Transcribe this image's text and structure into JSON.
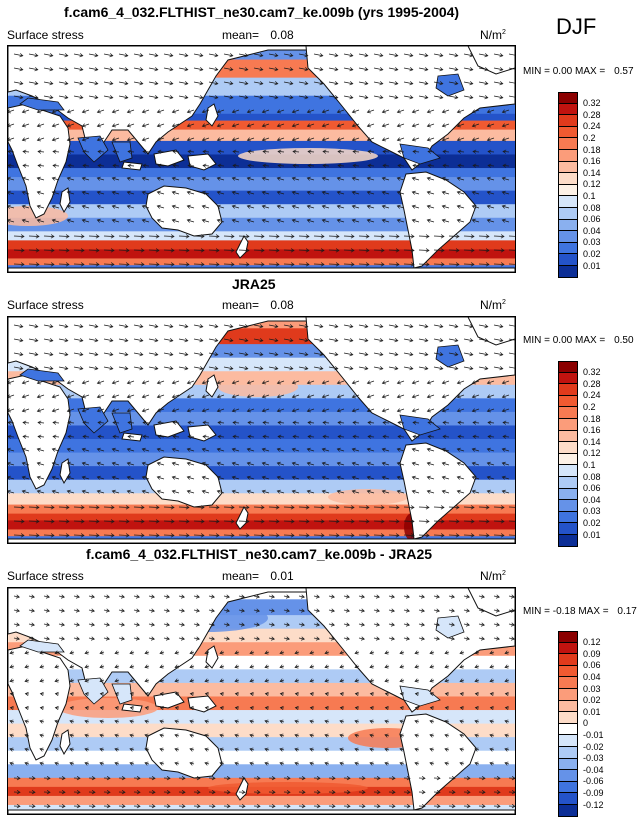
{
  "season": "DJF",
  "colors": {
    "land": "#ffffff",
    "coast": "#111111",
    "arrow": "#1a1a1a"
  },
  "panels": [
    {
      "title": "f.cam6_4_032.FLTHIST_ne30.cam7_ke.009b (yrs 1995-2004)",
      "variable": "Surface stress",
      "mean_label": "mean=",
      "mean_value": "0.08",
      "units": "N/m",
      "units_sup": "2",
      "min_label": "MIN =",
      "min_value": "0.00",
      "max_label": "MAX =",
      "max_value": "0.57",
      "colorbar_labels": [
        "0.32",
        "0.28",
        "0.24",
        "0.2",
        "0.18",
        "0.16",
        "0.14",
        "0.12",
        "0.1",
        "0.08",
        "0.06",
        "0.04",
        "0.03",
        "0.02",
        "0.01"
      ],
      "colorbar_colors": [
        "#8b0000",
        "#c0130f",
        "#e03a1c",
        "#f05a31",
        "#f77a52",
        "#fb9c7a",
        "#fcbba0",
        "#fddcc8",
        "#fdf1e6",
        "#d6e6fa",
        "#aecbf5",
        "#8ab0ef",
        "#6592e8",
        "#3f74e0",
        "#2453c9",
        "#0c2e96"
      ]
    },
    {
      "title": "JRA25",
      "variable": "Surface stress",
      "mean_label": "mean=",
      "mean_value": "0.08",
      "units": "N/m",
      "units_sup": "2",
      "min_label": "MIN =",
      "min_value": "0.00",
      "max_label": "MAX =",
      "max_value": "0.50",
      "colorbar_labels": [
        "0.32",
        "0.28",
        "0.24",
        "0.2",
        "0.18",
        "0.16",
        "0.14",
        "0.12",
        "0.1",
        "0.08",
        "0.06",
        "0.04",
        "0.03",
        "0.02",
        "0.01"
      ],
      "colorbar_colors": [
        "#8b0000",
        "#c0130f",
        "#e03a1c",
        "#f05a31",
        "#f77a52",
        "#fb9c7a",
        "#fcbba0",
        "#fddcc8",
        "#fdf1e6",
        "#d6e6fa",
        "#aecbf5",
        "#8ab0ef",
        "#6592e8",
        "#3f74e0",
        "#2453c9",
        "#0c2e96"
      ]
    },
    {
      "title": "f.cam6_4_032.FLTHIST_ne30.cam7_ke.009b - JRA25",
      "variable": "Surface stress",
      "mean_label": "mean=",
      "mean_value": "0.01",
      "units": "N/m",
      "units_sup": "2",
      "min_label": "MIN =",
      "min_value": "-0.18",
      "max_label": "MAX =",
      "max_value": "0.17",
      "colorbar_labels": [
        "0.12",
        "0.09",
        "0.06",
        "0.04",
        "0.03",
        "0.02",
        "0.01",
        "0",
        "-0.01",
        "-0.02",
        "-0.03",
        "-0.04",
        "-0.06",
        "-0.09",
        "-0.12"
      ],
      "colorbar_colors": [
        "#8b0000",
        "#c0130f",
        "#e03a1c",
        "#f05a31",
        "#f77a52",
        "#fb9c7a",
        "#fcbba0",
        "#fddcc8",
        "#ffffff",
        "#d6e6fa",
        "#aecbf5",
        "#8ab0ef",
        "#6592e8",
        "#3f74e0",
        "#2453c9",
        "#0c2e96"
      ]
    }
  ]
}
